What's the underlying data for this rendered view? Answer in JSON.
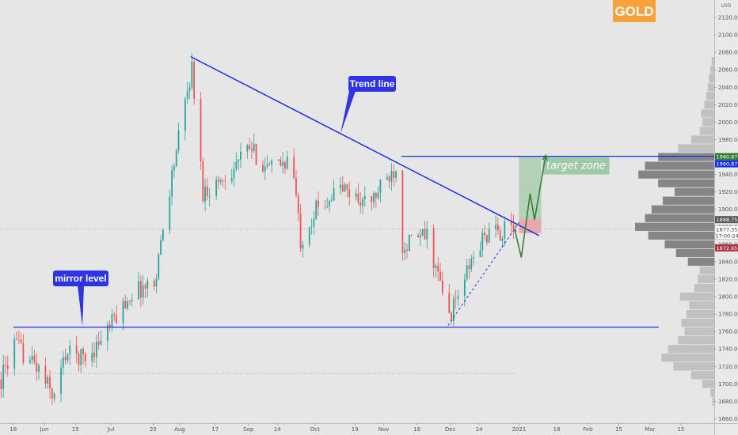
{
  "chart_data": {
    "type": "candlestick",
    "symbol": "GOLD",
    "currency": "USD",
    "y_range": [
      1655,
      2140
    ],
    "y_ticks": [
      1660,
      1680,
      1700,
      1720,
      1740,
      1760,
      1780,
      1800,
      1820,
      1840,
      1860,
      1880,
      1900,
      1920,
      1940,
      1960,
      1980,
      2000,
      2020,
      2040,
      2060,
      2080,
      2100,
      2120
    ],
    "x_range": [
      "2020-05-12",
      "2021-03-30"
    ],
    "x_ticks": [
      {
        "date": "2020-05-18",
        "label": "18"
      },
      {
        "date": "2020-06-01",
        "label": "Jun"
      },
      {
        "date": "2020-06-15",
        "label": "15"
      },
      {
        "date": "2020-07-01",
        "label": "Jul"
      },
      {
        "date": "2020-07-20",
        "label": "20"
      },
      {
        "date": "2020-08-01",
        "label": "Aug"
      },
      {
        "date": "2020-08-17",
        "label": "17"
      },
      {
        "date": "2020-09-01",
        "label": "Sep"
      },
      {
        "date": "2020-09-14",
        "label": "14"
      },
      {
        "date": "2020-10-01",
        "label": "Oct"
      },
      {
        "date": "2020-10-19",
        "label": "19"
      },
      {
        "date": "2020-11-01",
        "label": "Nov"
      },
      {
        "date": "2020-11-16",
        "label": "16"
      },
      {
        "date": "2020-12-01",
        "label": "Dec"
      },
      {
        "date": "2020-12-14",
        "label": "14"
      },
      {
        "date": "2021-01-01",
        "label": "2021"
      },
      {
        "date": "2021-01-18",
        "label": "18"
      },
      {
        "date": "2021-02-01",
        "label": "Feb"
      },
      {
        "date": "2021-02-15",
        "label": "15"
      },
      {
        "date": "2021-03-01",
        "label": "Mar"
      },
      {
        "date": "2021-03-15",
        "label": "15"
      }
    ],
    "price_path": [
      [
        "2020-05-12",
        1705
      ],
      [
        "2020-05-18",
        1745
      ],
      [
        "2020-05-28",
        1720
      ],
      [
        "2020-06-05",
        1685
      ],
      [
        "2020-06-10",
        1735
      ],
      [
        "2020-06-20",
        1730
      ],
      [
        "2020-07-01",
        1770
      ],
      [
        "2020-07-10",
        1805
      ],
      [
        "2020-07-20",
        1815
      ],
      [
        "2020-07-28",
        1940
      ],
      [
        "2020-08-06",
        2062
      ],
      [
        "2020-08-11",
        1920
      ],
      [
        "2020-08-20",
        1935
      ],
      [
        "2020-09-01",
        1970
      ],
      [
        "2020-09-10",
        1945
      ],
      [
        "2020-09-20",
        1960
      ],
      [
        "2020-09-24",
        1865
      ],
      [
        "2020-10-01",
        1900
      ],
      [
        "2020-10-12",
        1925
      ],
      [
        "2020-10-25",
        1905
      ],
      [
        "2020-11-06",
        1950
      ],
      [
        "2020-11-09",
        1860
      ],
      [
        "2020-11-20",
        1870
      ],
      [
        "2020-11-30",
        1776
      ],
      [
        "2020-12-10",
        1840
      ],
      [
        "2020-12-16",
        1870
      ],
      [
        "2020-12-30",
        1878
      ]
    ],
    "annotations": [
      {
        "label": "Trend line",
        "kind": "trend-line",
        "from": [
          "2020-08-06",
          2075
        ],
        "to": [
          "2021-01-10",
          1870
        ]
      },
      {
        "label": "mirror level",
        "kind": "horizontal-line",
        "price": 1765,
        "from_date": "2020-05-18",
        "to_date": "2021-03-05"
      },
      {
        "kind": "horizontal-line",
        "price": 1960.87,
        "from_date": "2020-11-09",
        "to_date": "2021-03-30"
      },
      {
        "kind": "horizontal-line",
        "price": 1712,
        "from_date": "2020-05-12",
        "to_date": "2020-12-30",
        "style": "dotted"
      },
      {
        "kind": "dashed-support",
        "from": [
          "2020-11-30",
          1767
        ],
        "to": [
          "2021-01-01",
          1885
        ]
      },
      {
        "label": "target zone",
        "kind": "zone",
        "from_date": "2021-01-01",
        "to_date": "2021-01-11",
        "price_top": 1960.87,
        "price_bottom": 1888.75
      },
      {
        "kind": "stop-zone",
        "from_date": "2021-01-01",
        "to_date": "2021-01-11",
        "price_top": 1888.75,
        "price_bottom": 1872.65
      },
      {
        "kind": "projection-path",
        "points": [
          [
            "2020-12-30",
            1877.35
          ],
          [
            "2021-01-02",
            1845
          ],
          [
            "2021-01-06",
            1918
          ],
          [
            "2021-01-08",
            1888
          ],
          [
            "2021-01-13",
            1962
          ]
        ]
      }
    ],
    "price_badges": [
      {
        "price": 1960.87,
        "label": "1960.87",
        "color": "#2e7d32"
      },
      {
        "price": 1960.87,
        "label": "1960.87",
        "color": "#1a2ee6"
      },
      {
        "price": 1888.75,
        "label": "1888.75",
        "color": "#5a5a5a"
      },
      {
        "price": 1877.35,
        "label": "1877.35",
        "color": "#ffffff",
        "sub": "17:00:24"
      },
      {
        "price": 1872.65,
        "label": "1872.65",
        "color": "#a83240"
      }
    ],
    "volume_profile": [
      [
        1680,
        3
      ],
      [
        1690,
        6
      ],
      [
        1700,
        18
      ],
      [
        1710,
        35
      ],
      [
        1720,
        62
      ],
      [
        1730,
        80
      ],
      [
        1740,
        70
      ],
      [
        1750,
        55
      ],
      [
        1760,
        45
      ],
      [
        1770,
        50
      ],
      [
        1780,
        42
      ],
      [
        1790,
        38
      ],
      [
        1800,
        52
      ],
      [
        1810,
        30
      ],
      [
        1820,
        25
      ],
      [
        1830,
        22
      ],
      [
        1840,
        40
      ],
      [
        1850,
        58
      ],
      [
        1860,
        75
      ],
      [
        1870,
        100
      ],
      [
        1880,
        120
      ],
      [
        1890,
        105
      ],
      [
        1900,
        95
      ],
      [
        1910,
        78
      ],
      [
        1920,
        60
      ],
      [
        1930,
        85
      ],
      [
        1940,
        115
      ],
      [
        1950,
        105
      ],
      [
        1960,
        85
      ],
      [
        1970,
        55
      ],
      [
        1980,
        35
      ],
      [
        1990,
        22
      ],
      [
        2000,
        18
      ],
      [
        2010,
        20
      ],
      [
        2020,
        15
      ],
      [
        2030,
        12
      ],
      [
        2040,
        10
      ],
      [
        2050,
        8
      ],
      [
        2060,
        6
      ],
      [
        2070,
        4
      ]
    ],
    "colors": {
      "up": "#26a69a",
      "down": "#ef5350",
      "line": "#1a2ee6",
      "callout": "#2e33e6",
      "zone": "#9cc8a0",
      "stop": "#e8a1a6",
      "projection": "#2e7d32",
      "symbol_badge": "#f7a13a"
    }
  }
}
